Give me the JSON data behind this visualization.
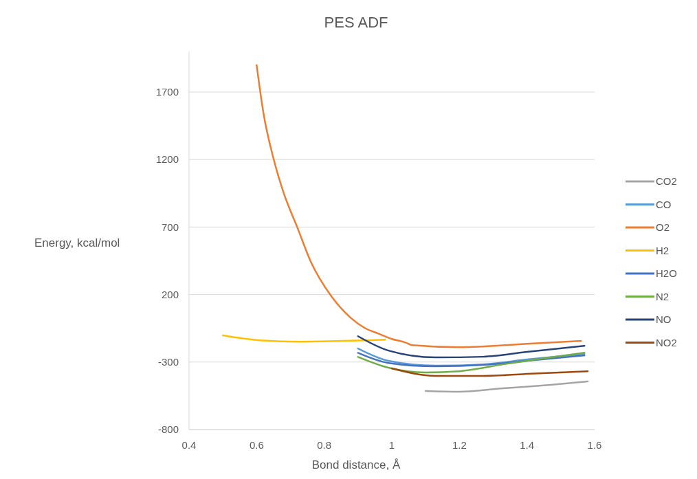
{
  "chart_data": {
    "type": "line",
    "title": "PES ADF",
    "xlabel": "Bond distance, Å",
    "ylabel": "Energy, kcal/mol",
    "xlim": [
      0.4,
      1.6
    ],
    "xticks": [
      0.4,
      0.6,
      0.8,
      1,
      1.2,
      1.4,
      1.6
    ],
    "ylim": [
      -800,
      2000
    ],
    "yticks": [
      -800,
      -300,
      200,
      700,
      1200,
      1700
    ],
    "grid": "y",
    "legend": "right",
    "marker": "none",
    "line_style": "solid",
    "series": [
      {
        "name": "CO2",
        "color": "#a5a5a5",
        "x": [
          1.1,
          1.2,
          1.33,
          1.47,
          1.58
        ],
        "values": [
          -515,
          -520,
          -495,
          -469,
          -444
        ]
      },
      {
        "name": "CO",
        "color": "#5b9bd5",
        "x": [
          0.9,
          0.99,
          1.13,
          1.27,
          1.4,
          1.57
        ],
        "values": [
          -200,
          -291,
          -327,
          -317,
          -281,
          -240
        ]
      },
      {
        "name": "O2",
        "color": "#ed7d31",
        "x": [
          0.6,
          0.62,
          0.65,
          0.68,
          0.72,
          0.76,
          0.82,
          0.88,
          0.92,
          0.96,
          1,
          1.04,
          1.06,
          1.2,
          1.4,
          1.56
        ],
        "values": [
          1900,
          1547,
          1207,
          953,
          700,
          445,
          191,
          24,
          -48,
          -89,
          -129,
          -155,
          -175,
          -190,
          -165,
          -144
        ]
      },
      {
        "name": "H2",
        "color": "#ffc000",
        "x": [
          0.5,
          0.61,
          0.73,
          0.98
        ],
        "values": [
          -103,
          -139,
          -149,
          -134
        ]
      },
      {
        "name": "H2O",
        "color": "#4472c4",
        "x": [
          0.9,
          0.99,
          1.13,
          1.27,
          1.4,
          1.57
        ],
        "values": [
          -232,
          -307,
          -332,
          -322,
          -291,
          -251
        ]
      },
      {
        "name": "N2",
        "color": "#70ad47",
        "x": [
          0.9,
          0.99,
          1.1,
          1.2,
          1.33,
          1.47,
          1.57
        ],
        "values": [
          -262,
          -342,
          -377,
          -368,
          -317,
          -266,
          -231
        ]
      },
      {
        "name": "NO",
        "color": "#264478",
        "x": [
          0.9,
          0.99,
          1.13,
          1.27,
          1.4,
          1.57
        ],
        "values": [
          -109,
          -215,
          -266,
          -261,
          -225,
          -180
        ]
      },
      {
        "name": "NO2",
        "color": "#9e480e",
        "x": [
          1,
          1.13,
          1.27,
          1.4,
          1.58
        ],
        "values": [
          -347,
          -403,
          -403,
          -388,
          -368
        ]
      }
    ]
  }
}
